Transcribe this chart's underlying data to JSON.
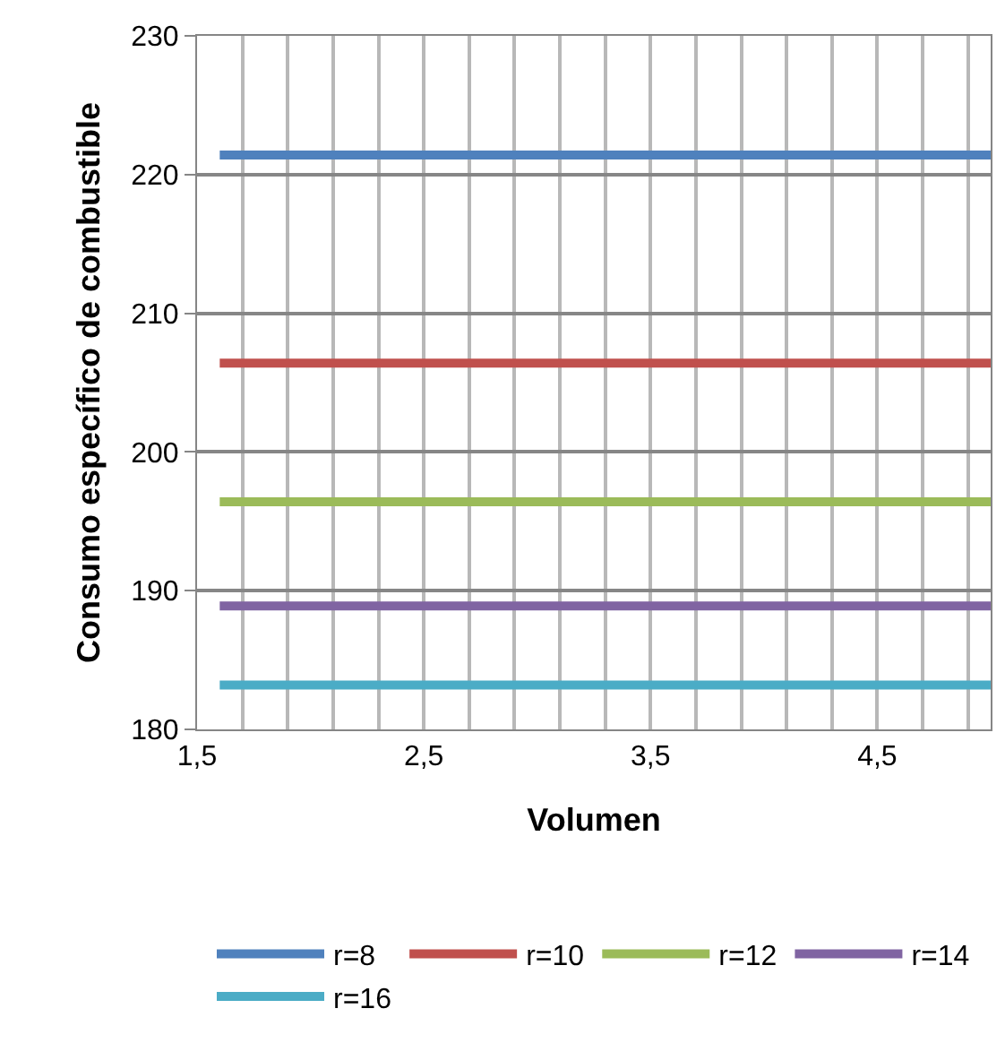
{
  "chart_data": {
    "type": "line",
    "xlabel": "Volumen",
    "ylabel": "Consumo específico de combustible",
    "x": [
      1.6,
      5
    ],
    "series": [
      {
        "name": "r=8",
        "color": "#4f81bd",
        "values": [
          221.4,
          221.4
        ]
      },
      {
        "name": "r=10",
        "color": "#c0504d",
        "values": [
          206.4,
          206.4
        ]
      },
      {
        "name": "r=12",
        "color": "#9bbb59",
        "values": [
          196.4,
          196.4
        ]
      },
      {
        "name": "r=14",
        "color": "#8064a2",
        "values": [
          188.9,
          188.9
        ]
      },
      {
        "name": "r=16",
        "color": "#4bacc6",
        "values": [
          183.2,
          183.2
        ]
      }
    ],
    "xlim": [
      1.5,
      5
    ],
    "xticks": [
      {
        "value": 1.5,
        "label": "1,5"
      },
      {
        "value": 1.7,
        "label": null
      },
      {
        "value": 1.9,
        "label": null
      },
      {
        "value": 2.1,
        "label": null
      },
      {
        "value": 2.3,
        "label": null
      },
      {
        "value": 2.5,
        "label": "2,5"
      },
      {
        "value": 2.7,
        "label": null
      },
      {
        "value": 2.9,
        "label": null
      },
      {
        "value": 3.1,
        "label": null
      },
      {
        "value": 3.3,
        "label": null
      },
      {
        "value": 3.5,
        "label": "3,5"
      },
      {
        "value": 3.7,
        "label": null
      },
      {
        "value": 3.9,
        "label": null
      },
      {
        "value": 4.1,
        "label": null
      },
      {
        "value": 4.3,
        "label": null
      },
      {
        "value": 4.5,
        "label": "4,5"
      },
      {
        "value": 4.7,
        "label": null
      },
      {
        "value": 4.9,
        "label": null
      }
    ],
    "ylim": [
      180,
      230
    ],
    "yticks": [
      180,
      190,
      200,
      210,
      220,
      230
    ],
    "grid": true,
    "legend": "bottom",
    "marker": "none",
    "line_style": "solid"
  }
}
